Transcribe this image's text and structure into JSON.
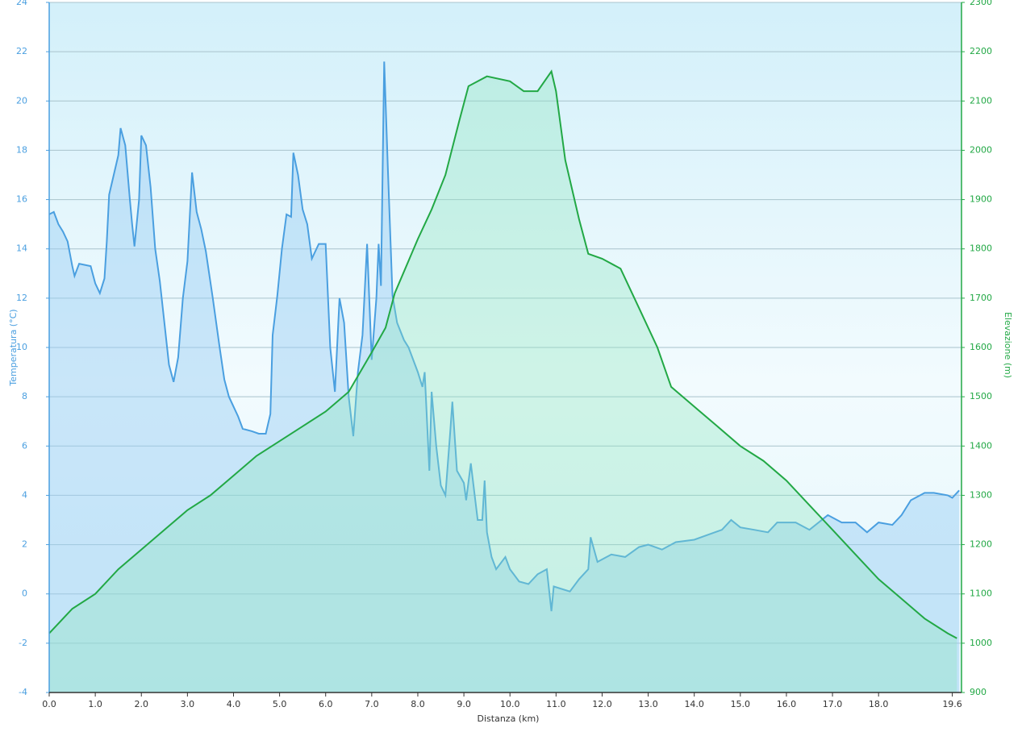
{
  "chart_data": {
    "type": "line",
    "xlabel": "Distanza  (km)",
    "ylabel": "Temperatura (°C)",
    "y2label": "Elevazione (m)",
    "xlim": [
      0,
      19.8
    ],
    "xticks": [
      {
        "value": 0,
        "label": "0.0"
      },
      {
        "value": 1,
        "label": "1.0"
      },
      {
        "value": 2,
        "label": "2.0"
      },
      {
        "value": 3,
        "label": "3.0"
      },
      {
        "value": 4,
        "label": "4.0"
      },
      {
        "value": 5,
        "label": "5.0"
      },
      {
        "value": 6,
        "label": "6.0"
      },
      {
        "value": 7,
        "label": "7.0"
      },
      {
        "value": 8,
        "label": "8.0"
      },
      {
        "value": 9,
        "label": "9.0"
      },
      {
        "value": 10,
        "label": "10.0"
      },
      {
        "value": 11,
        "label": "11.0"
      },
      {
        "value": 12,
        "label": "12.0"
      },
      {
        "value": 13,
        "label": "13.0"
      },
      {
        "value": 14,
        "label": "14.0"
      },
      {
        "value": 15,
        "label": "15.0"
      },
      {
        "value": 16,
        "label": "16.0"
      },
      {
        "value": 17,
        "label": "17.0"
      },
      {
        "value": 18,
        "label": "18.0"
      },
      19.6
    ],
    "ylim": [
      -4,
      24
    ],
    "yticks": [
      -4,
      -2,
      0,
      2,
      4,
      6,
      8,
      10,
      12,
      14,
      16,
      18,
      20,
      22,
      24
    ],
    "y2lim": [
      900,
      2300
    ],
    "y2ticks": [
      900,
      1000,
      1100,
      1200,
      1300,
      1400,
      1500,
      1600,
      1700,
      1800,
      1900,
      2000,
      2100,
      2200,
      2300
    ],
    "grid": true,
    "series": [
      {
        "color": "#4a9fe0",
        "axis": "y",
        "x": [
          0,
          0.1,
          0.2,
          0.3,
          0.4,
          0.5,
          0.55,
          0.65,
          0.9,
          1.0,
          1.1,
          1.2,
          1.25,
          1.3,
          1.4,
          1.5,
          1.55,
          1.65,
          1.75,
          1.8,
          1.85,
          1.95,
          2.0,
          2.1,
          2.2,
          2.3,
          2.4,
          2.5,
          2.6,
          2.7,
          2.8,
          2.9,
          3.0,
          3.1,
          3.2,
          3.3,
          3.4,
          3.55,
          3.7,
          3.8,
          3.9,
          4.1,
          4.2,
          4.4,
          4.55,
          4.7,
          4.8,
          4.85,
          4.95,
          5.05,
          5.15,
          5.25,
          5.3,
          5.4,
          5.5,
          5.6,
          5.7,
          5.85,
          6.0,
          6.1,
          6.2,
          6.3,
          6.4,
          6.5,
          6.6,
          6.7,
          6.8,
          6.9,
          7.0,
          7.1,
          7.15,
          7.2,
          7.27,
          7.35,
          7.45,
          7.55,
          7.7,
          7.8,
          8.0,
          8.1,
          8.15,
          8.25,
          8.3,
          8.4,
          8.5,
          8.6,
          8.7,
          8.75,
          8.85,
          9.0,
          9.05,
          9.15,
          9.3,
          9.4,
          9.45,
          9.5,
          9.6,
          9.7,
          9.9,
          10.0,
          10.2,
          10.4,
          10.6,
          10.8,
          10.9,
          10.95,
          11.3,
          11.5,
          11.7,
          11.75,
          11.9,
          12.0,
          12.2,
          12.5,
          12.8,
          13.0,
          13.3,
          13.6,
          14.0,
          14.3,
          14.6,
          14.8,
          15.0,
          15.3,
          15.6,
          15.8,
          16.2,
          16.5,
          16.9,
          17.2,
          17.5,
          17.75,
          18.0,
          18.3,
          18.5,
          18.7,
          19.0,
          19.2,
          19.5,
          19.6,
          19.75
        ],
        "values": [
          15.4,
          15.5,
          15,
          14.7,
          14.3,
          13.3,
          12.9,
          13.4,
          13.3,
          12.6,
          12.2,
          12.8,
          14.3,
          16.2,
          17,
          17.8,
          18.9,
          18.2,
          16,
          15,
          14.1,
          16,
          18.6,
          18.2,
          16.5,
          14,
          12.7,
          11,
          9.3,
          8.6,
          9.6,
          12,
          13.5,
          17.1,
          15.5,
          14.8,
          13.9,
          12,
          10,
          8.7,
          8,
          7.2,
          6.7,
          6.6,
          6.5,
          6.5,
          7.3,
          10.5,
          12.1,
          14,
          15.4,
          15.3,
          17.9,
          17,
          15.6,
          15,
          13.6,
          14.2,
          14.2,
          10,
          8.2,
          12,
          11,
          8,
          6.4,
          9,
          10.5,
          14.2,
          9.5,
          12,
          14.2,
          12.5,
          21.6,
          17.3,
          12.1,
          11,
          10.3,
          10,
          9,
          8.4,
          9,
          5,
          8.2,
          6,
          4.4,
          4,
          6.5,
          7.8,
          5,
          4.5,
          3.8,
          5.3,
          3,
          3,
          4.6,
          2.5,
          1.5,
          1,
          1.5,
          1,
          0.5,
          0.4,
          0.8,
          1,
          -0.7,
          0.3,
          0.1,
          0.6,
          1,
          2.3,
          1.3,
          1.4,
          1.6,
          1.5,
          1.9,
          2,
          1.8,
          2.1,
          2.2,
          2.4,
          2.6,
          3,
          2.7,
          2.6,
          2.5,
          2.9,
          2.9,
          2.6,
          3.2,
          2.9,
          2.9,
          2.5,
          2.9,
          2.8,
          3.2,
          3.8,
          4.1,
          4.1,
          4.0,
          3.9,
          4.2
        ]
      },
      {
        "color": "#22a845",
        "axis": "y2",
        "x": [
          0,
          0.2,
          0.5,
          1.0,
          1.5,
          2.0,
          2.5,
          3.0,
          3.5,
          4.0,
          4.5,
          5.0,
          5.5,
          6.0,
          6.5,
          7.0,
          7.3,
          7.5,
          8.0,
          8.3,
          8.6,
          8.9,
          9.1,
          9.5,
          10.0,
          10.3,
          10.6,
          10.9,
          11.0,
          11.2,
          11.5,
          11.7,
          12.0,
          12.4,
          12.8,
          13.2,
          13.5,
          14.0,
          14.5,
          15.0,
          15.5,
          16.0,
          16.5,
          17.0,
          17.5,
          18.0,
          18.5,
          19.0,
          19.5,
          19.7
        ],
        "values": [
          1020,
          1040,
          1070,
          1100,
          1150,
          1190,
          1230,
          1270,
          1300,
          1340,
          1380,
          1410,
          1440,
          1470,
          1510,
          1590,
          1640,
          1710,
          1820,
          1880,
          1950,
          2060,
          2130,
          2150,
          2140,
          2120,
          2120,
          2160,
          2120,
          1980,
          1860,
          1790,
          1780,
          1760,
          1680,
          1600,
          1520,
          1480,
          1440,
          1400,
          1370,
          1330,
          1280,
          1230,
          1180,
          1130,
          1090,
          1050,
          1020,
          1010
        ]
      }
    ]
  }
}
